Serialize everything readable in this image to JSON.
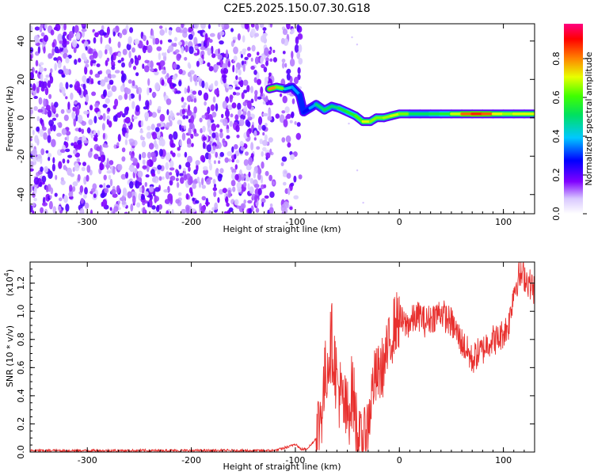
{
  "title": "C2E5.2025.150.07.30.G18",
  "chart_data": [
    {
      "type": "heatmap",
      "xlabel": "Height of straight line (km)",
      "ylabel": "Frequency (Hz)",
      "xlim": [
        -355,
        130
      ],
      "ylim": [
        -50,
        49
      ],
      "x_ticks": [
        -300,
        -200,
        -100,
        0,
        100
      ],
      "y_ticks": [
        -40,
        -20,
        0,
        20,
        40
      ],
      "colorbar": {
        "label": "Normalized spectral amplitude",
        "range": [
          0,
          0.98
        ],
        "ticks": [
          0.0,
          0.2,
          0.4,
          0.6,
          0.8
        ]
      },
      "noise_region": {
        "x_from": -355,
        "x_to": -95,
        "freq_from": -50,
        "freq_to": 49,
        "amplitude": 0.15
      },
      "signal_track": [
        {
          "x": -125,
          "freq": 15,
          "amp": 0.75
        },
        {
          "x": -118,
          "freq": 16,
          "amp": 0.85
        },
        {
          "x": -110,
          "freq": 15,
          "amp": 0.45
        },
        {
          "x": -103,
          "freq": 16,
          "amp": 0.4
        },
        {
          "x": -96,
          "freq": 12,
          "amp": 0.35
        },
        {
          "x": -92,
          "freq": 3,
          "amp": 0.25
        },
        {
          "x": -86,
          "freq": 5,
          "amp": 0.3
        },
        {
          "x": -80,
          "freq": 7,
          "amp": 0.45
        },
        {
          "x": -72,
          "freq": 4,
          "amp": 0.55
        },
        {
          "x": -65,
          "freq": 6,
          "amp": 0.5
        },
        {
          "x": -58,
          "freq": 5,
          "amp": 0.5
        },
        {
          "x": -50,
          "freq": 3,
          "amp": 0.6
        },
        {
          "x": -42,
          "freq": 1,
          "amp": 0.55
        },
        {
          "x": -35,
          "freq": -2,
          "amp": 0.7
        },
        {
          "x": -28,
          "freq": -2,
          "amp": 0.72
        },
        {
          "x": -22,
          "freq": 0,
          "amp": 0.6
        },
        {
          "x": -15,
          "freq": 0,
          "amp": 0.7
        },
        {
          "x": -8,
          "freq": 1,
          "amp": 0.65
        },
        {
          "x": 0,
          "freq": 2,
          "amp": 0.75
        },
        {
          "x": 10,
          "freq": 2,
          "amp": 0.55
        },
        {
          "x": 20,
          "freq": 2,
          "amp": 0.5
        },
        {
          "x": 30,
          "freq": 2,
          "amp": 0.55
        },
        {
          "x": 40,
          "freq": 2,
          "amp": 0.55
        },
        {
          "x": 50,
          "freq": 2,
          "amp": 0.6
        },
        {
          "x": 60,
          "freq": 2,
          "amp": 0.8
        },
        {
          "x": 70,
          "freq": 2,
          "amp": 0.88
        },
        {
          "x": 80,
          "freq": 2,
          "amp": 0.9
        },
        {
          "x": 90,
          "freq": 2,
          "amp": 0.8
        },
        {
          "x": 100,
          "freq": 2,
          "amp": 0.65
        },
        {
          "x": 110,
          "freq": 2,
          "amp": 0.7
        },
        {
          "x": 120,
          "freq": 2,
          "amp": 0.72
        },
        {
          "x": 130,
          "freq": 2,
          "amp": 0.7
        }
      ]
    },
    {
      "type": "line",
      "xlabel": "Height of straight line (km)",
      "ylabel": "SNR (10 * v/v)",
      "y_multiplier": "(x10",
      "y_multiplier_exp": "4",
      "y_multiplier_close": ")",
      "xlim": [
        -355,
        130
      ],
      "ylim": [
        0,
        1.35
      ],
      "x_ticks": [
        -300,
        -200,
        -100,
        0,
        100
      ],
      "y_ticks": [
        "0.0",
        "0.2",
        "0.4",
        "0.6",
        "0.8",
        "1.0",
        "1.2"
      ],
      "series": [
        {
          "color": "#e8302e",
          "x": [
            -355,
            -300,
            -250,
            -200,
            -150,
            -120,
            -105,
            -100,
            -95,
            -90,
            -85,
            -80,
            -75,
            -70,
            -65,
            -60,
            -55,
            -50,
            -45,
            -40,
            -35,
            -30,
            -25,
            -20,
            -15,
            -10,
            -5,
            0,
            5,
            10,
            15,
            20,
            25,
            30,
            35,
            40,
            45,
            50,
            55,
            60,
            65,
            70,
            75,
            80,
            85,
            90,
            95,
            100,
            105,
            110,
            115,
            120,
            125,
            130
          ],
          "y": [
            0.01,
            0.01,
            0.01,
            0.01,
            0.01,
            0.01,
            0.04,
            0.06,
            0.02,
            0.02,
            0.05,
            0.1,
            0.3,
            0.6,
            0.8,
            0.5,
            0.35,
            0.25,
            0.45,
            0.1,
            0.05,
            0.2,
            0.5,
            0.55,
            0.62,
            0.75,
            0.9,
            0.95,
            0.9,
            0.92,
            0.95,
            0.97,
            0.92,
            0.95,
            0.97,
            1.0,
            0.95,
            0.92,
            0.85,
            0.78,
            0.72,
            0.65,
            0.7,
            0.72,
            0.78,
            0.8,
            0.8,
            0.85,
            0.9,
            1.15,
            1.25,
            1.25,
            1.2,
            1.15
          ]
        }
      ]
    }
  ]
}
